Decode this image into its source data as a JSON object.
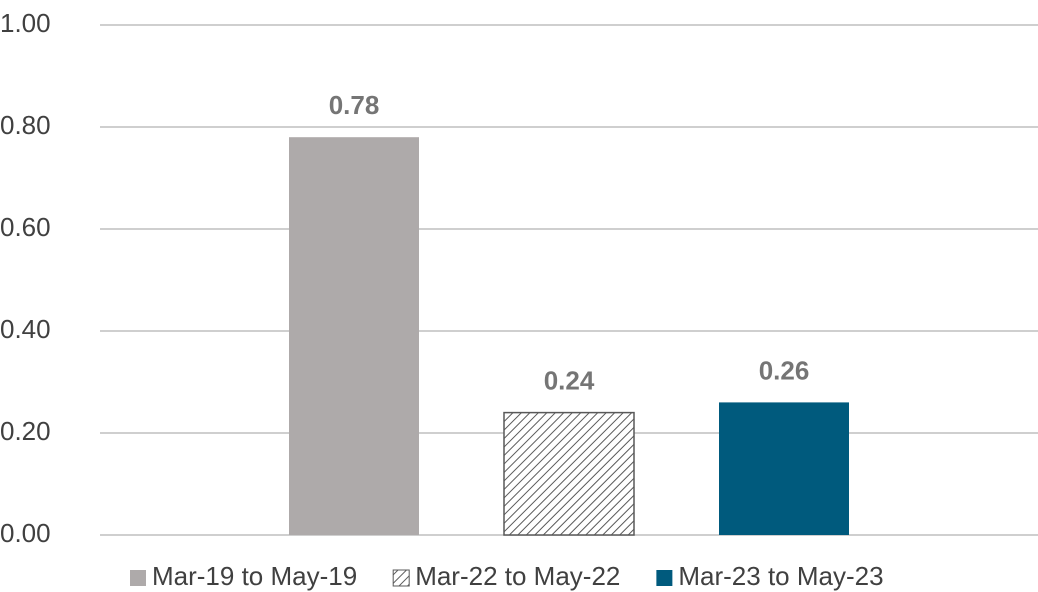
{
  "chart_data": {
    "type": "bar",
    "categories": [
      null
    ],
    "series": [
      {
        "name": "Mar-19 to May-19",
        "color": "#aeaaaa",
        "values": [
          0.78
        ]
      },
      {
        "name": "Mar-22 to May-22",
        "color": "#595959",
        "pattern": "hatch",
        "values": [
          0.24
        ]
      },
      {
        "name": "Mar-23 to May-23",
        "color": "#005a7d",
        "values": [
          0.26
        ]
      }
    ],
    "ylim": [
      0,
      1
    ],
    "yticks": [
      {
        "value": 0,
        "label": "0.00"
      },
      {
        "value": 0.2,
        "label": "0.20"
      },
      {
        "value": 0.4,
        "label": "0.40"
      },
      {
        "value": 0.6,
        "label": "0.60"
      },
      {
        "value": 0.8,
        "label": "0.80"
      },
      {
        "value": 1,
        "label": "1.00"
      }
    ],
    "grid": true,
    "legend": "bottom"
  }
}
